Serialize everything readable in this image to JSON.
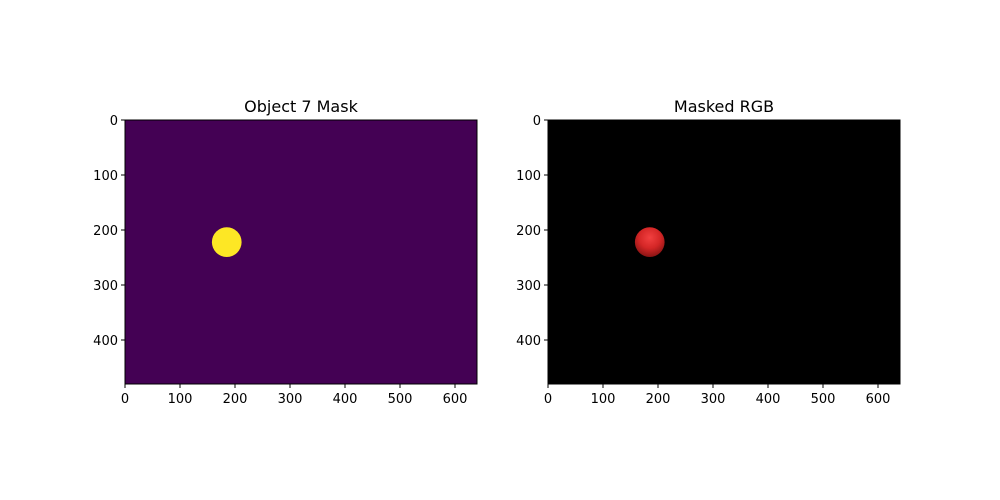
{
  "chart_data": [
    {
      "type": "heatmap",
      "title": "Object 7 Mask",
      "image_width": 640,
      "image_height": 480,
      "xlim": [
        0,
        640
      ],
      "ylim": [
        480,
        0
      ],
      "x_ticks": [
        0,
        100,
        200,
        300,
        400,
        500,
        600
      ],
      "y_ticks": [
        0,
        100,
        200,
        300,
        400
      ],
      "background_color": "#440154",
      "object": {
        "shape": "circle",
        "center_x": 185,
        "center_y": 222,
        "radius": 27,
        "color": "#fde725"
      }
    },
    {
      "type": "heatmap",
      "title": "Masked RGB",
      "image_width": 640,
      "image_height": 480,
      "xlim": [
        0,
        640
      ],
      "ylim": [
        480,
        0
      ],
      "x_ticks": [
        0,
        100,
        200,
        300,
        400,
        500,
        600
      ],
      "y_ticks": [
        0,
        100,
        200,
        300,
        400
      ],
      "background_color": "#000000",
      "object": {
        "shape": "sphere",
        "center_x": 185,
        "center_y": 222,
        "radius": 27,
        "color": "#e02a2a"
      }
    }
  ]
}
